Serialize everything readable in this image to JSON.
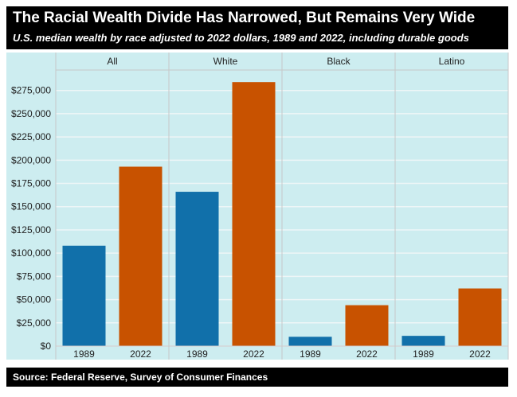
{
  "header": {
    "title": "The Racial Wealth Divide Has Narrowed, But Remains Very Wide",
    "subtitle": "U.S. median wealth by race adjusted to 2022 dollars, 1989 and 2022, including durable goods"
  },
  "footer": {
    "source": "Source: Federal Reserve, Survey of Consumer Finances"
  },
  "chart_data": {
    "type": "bar",
    "title": "The Racial Wealth Divide Has Narrowed, But Remains Very Wide",
    "subtitle": "U.S. median wealth by race adjusted to 2022 dollars, 1989 and 2022, including durable goods",
    "facets": [
      "All",
      "White",
      "Black",
      "Latino"
    ],
    "categories": [
      "1989",
      "2022"
    ],
    "colors": {
      "1989": "#1170aa",
      "2022": "#c85200"
    },
    "values": {
      "All": [
        108000,
        193000
      ],
      "White": [
        166000,
        284000
      ],
      "Black": [
        10000,
        44000
      ],
      "Latino": [
        11000,
        62000
      ]
    },
    "yticks": [
      0,
      25000,
      50000,
      75000,
      100000,
      125000,
      150000,
      175000,
      200000,
      225000,
      250000,
      275000
    ],
    "ytick_labels": [
      "$0",
      "$25,000",
      "$50,000",
      "$75,000",
      "$100,000",
      "$125,000",
      "$150,000",
      "$175,000",
      "$200,000",
      "$225,000",
      "$250,000",
      "$275,000"
    ],
    "ylim": [
      0,
      297000
    ],
    "grid": true,
    "background": "#cdedf0"
  }
}
